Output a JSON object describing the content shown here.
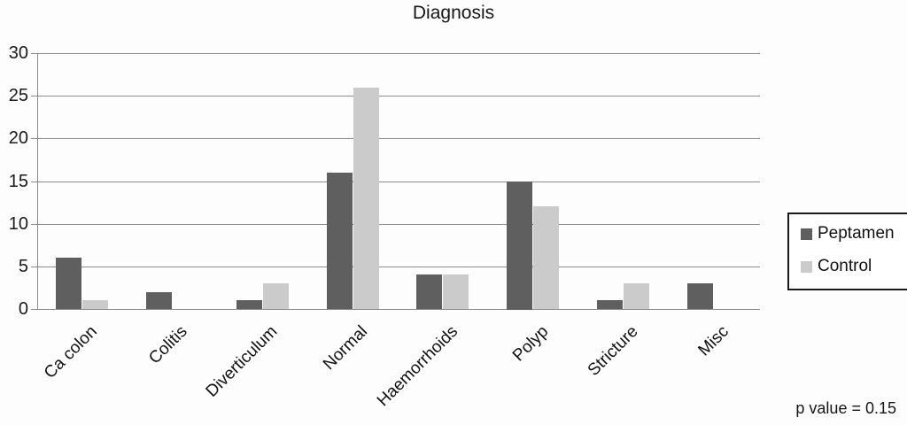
{
  "title": "Diagnosis",
  "chart_data": {
    "type": "bar",
    "title": "Diagnosis",
    "categories": [
      "Ca colon",
      "Colitis",
      "Diverticulum",
      "Normal",
      "Haemorrhoids",
      "Polyp",
      "Stricture",
      "Misc"
    ],
    "series": [
      {
        "name": "Peptamen",
        "color": "#5f5f5f",
        "values": [
          6,
          2,
          1,
          16,
          4,
          15,
          1,
          3
        ]
      },
      {
        "name": "Control",
        "color": "#cbcbcb",
        "values": [
          1,
          0,
          3,
          26,
          4,
          12,
          3,
          0
        ]
      }
    ],
    "xlabel": "",
    "ylabel": "",
    "ylim": [
      0,
      30
    ],
    "yticks": [
      0,
      5,
      10,
      15,
      20,
      25,
      30
    ],
    "grid": true,
    "legend_position": "right",
    "annotation": "p value = 0.15"
  },
  "annotation": {
    "p_value_text": "p value = 0.15"
  }
}
